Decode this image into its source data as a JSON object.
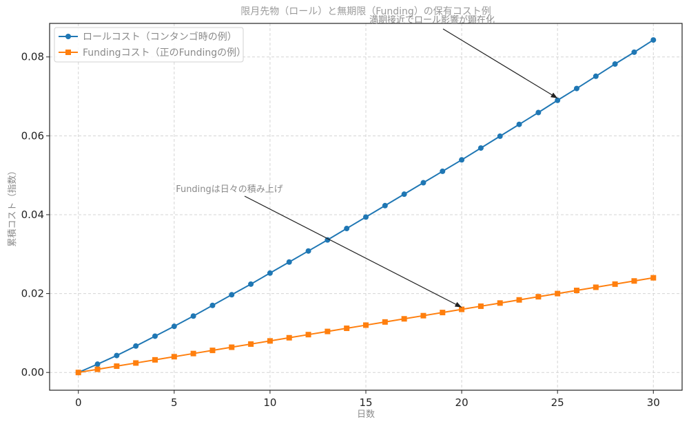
{
  "chart_data": {
    "type": "line",
    "title": "限月先物（ロール）と無期限（Funding）の保有コスト例",
    "xlabel": "日数",
    "ylabel": "累積コスト（指数）",
    "xlim": [
      -1.5,
      31.5
    ],
    "ylim": [
      -0.0045,
      0.0885
    ],
    "x_ticks": [
      0,
      5,
      10,
      15,
      20,
      25,
      30
    ],
    "x_tick_labels": [
      "0",
      "5",
      "10",
      "15",
      "20",
      "25",
      "30"
    ],
    "y_ticks": [
      0,
      0.02,
      0.04,
      0.06,
      0.08
    ],
    "y_tick_labels": [
      "0.00",
      "0.02",
      "0.04",
      "0.06",
      "0.08"
    ],
    "grid": true,
    "legend_position": "top-left",
    "x": [
      0,
      1,
      2,
      3,
      4,
      5,
      6,
      7,
      8,
      9,
      10,
      11,
      12,
      13,
      14,
      15,
      16,
      17,
      18,
      19,
      20,
      21,
      22,
      23,
      24,
      25,
      26,
      27,
      28,
      29,
      30
    ],
    "series": [
      {
        "name": "ロールコスト（コンタンゴ時の例）",
        "color": "#1f77b4",
        "marker": "circle",
        "values": [
          0.0,
          0.0021,
          0.0043,
          0.0067,
          0.0092,
          0.0117,
          0.0143,
          0.017,
          0.0197,
          0.0224,
          0.0252,
          0.028,
          0.0308,
          0.0336,
          0.0365,
          0.0394,
          0.0423,
          0.0452,
          0.0481,
          0.051,
          0.0539,
          0.0569,
          0.0599,
          0.0629,
          0.0659,
          0.069,
          0.072,
          0.0751,
          0.0782,
          0.0812,
          0.0843
        ]
      },
      {
        "name": "Fundingコスト（正のFundingの例）",
        "color": "#ff7f0e",
        "marker": "square",
        "values": [
          0.0,
          0.0008,
          0.0016,
          0.0024,
          0.0032,
          0.004,
          0.0048,
          0.0056,
          0.0064,
          0.0072,
          0.008,
          0.0088,
          0.0096,
          0.0104,
          0.0112,
          0.012,
          0.0128,
          0.0136,
          0.0144,
          0.0152,
          0.016,
          0.0168,
          0.0176,
          0.0184,
          0.0192,
          0.02,
          0.0208,
          0.0216,
          0.0224,
          0.0232,
          0.024
        ]
      }
    ],
    "annotations": [
      {
        "text": "満期接近でロール影響が顕在化",
        "target": [
          25,
          0.069
        ]
      },
      {
        "text": "Fundingは日々の積み上げ",
        "target": [
          20,
          0.016
        ]
      }
    ]
  }
}
